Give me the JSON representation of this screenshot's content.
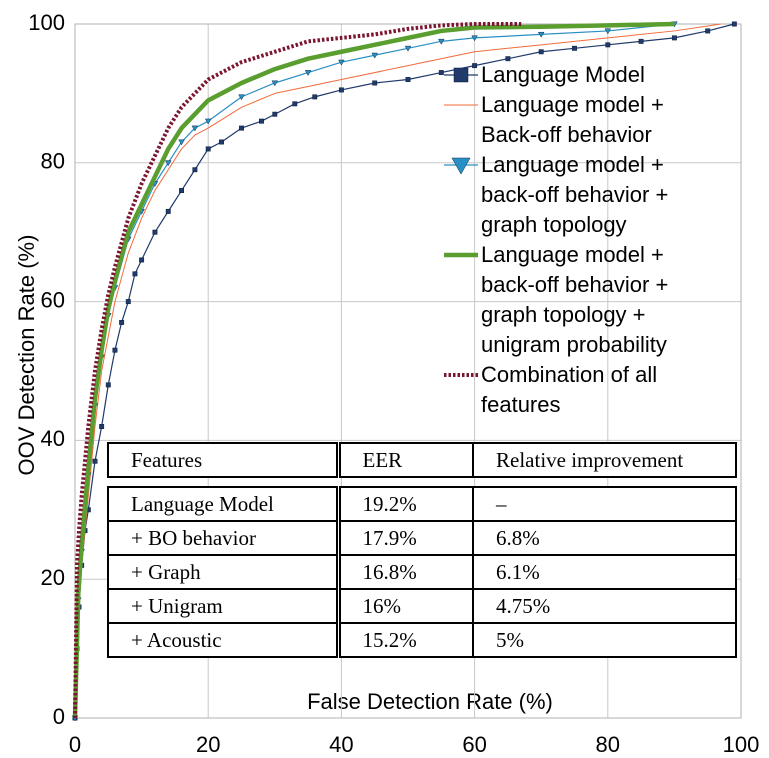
{
  "chart_data": {
    "type": "line",
    "x_label": "False Detection Rate (%)",
    "y_label": "OOV Detection Rate (%)",
    "xlim": [
      0,
      100
    ],
    "ylim": [
      0,
      100
    ],
    "xticks": [
      0,
      20,
      40,
      60,
      80,
      100
    ],
    "yticks": [
      0,
      20,
      40,
      60,
      80,
      100
    ],
    "grid": true,
    "legend": "upper right",
    "series": [
      {
        "name": "Language Model",
        "color": "#1f3a6b",
        "marker": "square",
        "line_width": 1.2,
        "line_style": "solid",
        "x": [
          0,
          0.3,
          0.6,
          1,
          1.5,
          2,
          3,
          4,
          5,
          6,
          7,
          8,
          9,
          10,
          12,
          14,
          16,
          18,
          20,
          22,
          25,
          28,
          30,
          33,
          36,
          40,
          45,
          50,
          55,
          60,
          65,
          70,
          75,
          80,
          85,
          90,
          95,
          99
        ],
        "values": [
          0,
          10,
          16,
          22,
          27,
          30,
          37,
          42,
          48,
          53,
          57,
          60,
          64,
          66,
          70,
          73,
          76,
          79,
          82,
          83,
          85,
          86,
          87,
          88.5,
          89.5,
          90.5,
          91.5,
          92,
          93,
          94,
          95,
          96,
          96.5,
          97,
          97.5,
          98,
          99,
          100
        ]
      },
      {
        "name": "Language model + Back-off behavior",
        "color": "#f26b3a",
        "marker": null,
        "line_width": 1,
        "line_style": "solid",
        "x": [
          0,
          0.5,
          1,
          2,
          3,
          4,
          5,
          6,
          8,
          10,
          12,
          14,
          16,
          18,
          20,
          25,
          30,
          35,
          40,
          50,
          60,
          70,
          80,
          90,
          97
        ],
        "values": [
          0,
          15,
          22,
          32,
          42,
          50,
          55,
          60,
          67,
          72,
          76,
          79,
          82,
          84,
          85,
          88,
          90,
          91,
          92,
          94,
          96,
          97,
          98,
          99,
          100
        ]
      },
      {
        "name": "Language model + back-off behavior + graph topology",
        "color": "#2a8fc4",
        "marker": "triangle",
        "line_width": 1.2,
        "line_style": "solid",
        "x": [
          0,
          0.5,
          1,
          2,
          3,
          4,
          5,
          6,
          8,
          10,
          12,
          14,
          16,
          18,
          20,
          25,
          30,
          35,
          40,
          45,
          50,
          55,
          60,
          70,
          80,
          90
        ],
        "values": [
          0,
          17,
          24,
          35,
          45,
          52,
          58,
          62,
          69,
          73,
          77,
          80,
          83,
          85,
          86,
          89.5,
          91.5,
          93,
          94.5,
          95.5,
          96.5,
          97.5,
          98,
          98.5,
          99,
          100
        ]
      },
      {
        "name": "Language model + back-off behavior + graph topology + unigram probability",
        "color": "#5a9e2f",
        "marker": null,
        "line_width": 4.5,
        "line_style": "solid",
        "x": [
          0,
          0.5,
          1,
          2,
          3,
          4,
          5,
          6,
          8,
          10,
          12,
          14,
          16,
          18,
          20,
          25,
          30,
          35,
          40,
          45,
          50,
          55,
          60,
          70,
          80,
          90
        ],
        "values": [
          0,
          18,
          25,
          36,
          46,
          53,
          59,
          63,
          70,
          74,
          78,
          82,
          85,
          87,
          89,
          91.5,
          93.5,
          95,
          96,
          97,
          98,
          99,
          99.5,
          99.6,
          99.8,
          100
        ]
      },
      {
        "name": "Combination of all features",
        "color": "#7b1530",
        "marker": null,
        "line_width": 4,
        "line_style": "dotted",
        "x": [
          0,
          0.3,
          0.6,
          1,
          2,
          3,
          4,
          5,
          6,
          8,
          10,
          12,
          14,
          16,
          18,
          20,
          25,
          30,
          35,
          40,
          45,
          50,
          55,
          60,
          67
        ],
        "values": [
          0,
          22,
          27,
          32,
          42,
          50,
          56,
          61,
          65,
          72,
          77,
          81,
          85,
          88,
          90,
          92,
          94.5,
          96,
          97.5,
          98,
          98.5,
          99.3,
          99.8,
          100,
          100
        ]
      }
    ],
    "table": {
      "columns": [
        "Features",
        "EER",
        "Relative improvement"
      ],
      "rows": [
        [
          "Language Model",
          "19.2%",
          "–"
        ],
        [
          "+ BO behavior",
          "17.9%",
          "6.8%"
        ],
        [
          "+ Graph",
          "16.8%",
          "6.1%"
        ],
        [
          "+ Unigram",
          "16%",
          "4.75%"
        ],
        [
          "+ Acoustic",
          "15.2%",
          "5%"
        ]
      ]
    }
  }
}
